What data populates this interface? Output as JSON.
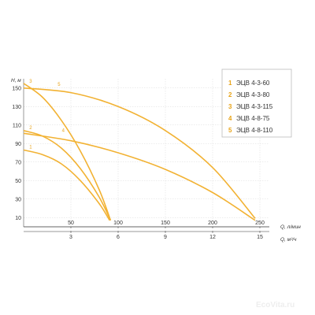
{
  "chart_data": {
    "type": "line",
    "ylabel": "H, м",
    "xlabel": "Q, л/мин",
    "xlabel2": "Q, м³/ч",
    "yticks": [
      10,
      30,
      50,
      70,
      90,
      110,
      130,
      150
    ],
    "xticks": [
      50,
      100,
      150,
      200,
      250
    ],
    "x2ticks": [
      3,
      6,
      9,
      12,
      15
    ],
    "xlim": [
      0,
      260
    ],
    "ylim": [
      0,
      160
    ],
    "color": "#f2b233",
    "series": [
      {
        "id": "1",
        "name": "ЭЦВ 4-3-60",
        "x": [
          0,
          20,
          40,
          60,
          80,
          91
        ],
        "y": [
          83,
          78,
          68,
          50,
          25,
          7
        ]
      },
      {
        "id": "2",
        "name": "ЭЦВ 4-3-80",
        "x": [
          0,
          20,
          40,
          60,
          80,
          92
        ],
        "y": [
          104,
          98,
          85,
          63,
          32,
          7
        ]
      },
      {
        "id": "3",
        "name": "ЭЦВ 4-3-115",
        "x": [
          0,
          20,
          40,
          60,
          80,
          92
        ],
        "y": [
          155,
          140,
          115,
          82,
          40,
          7
        ]
      },
      {
        "id": "4",
        "name": "ЭЦВ 4-8-75",
        "x": [
          0,
          50,
          100,
          150,
          200,
          245
        ],
        "y": [
          101,
          93,
          80,
          62,
          37,
          7
        ]
      },
      {
        "id": "5",
        "name": "ЭЦВ 4-8-110",
        "x": [
          0,
          50,
          100,
          150,
          200,
          245
        ],
        "y": [
          150,
          145,
          130,
          104,
          64,
          9
        ]
      }
    ]
  },
  "watermark": "EcoVita.ru"
}
